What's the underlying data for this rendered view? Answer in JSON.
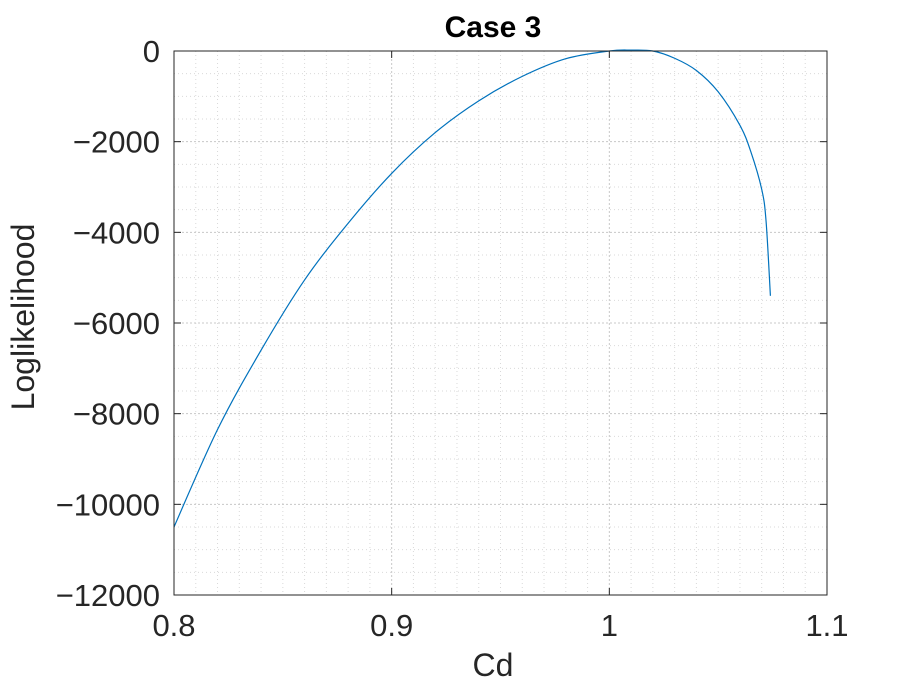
{
  "chart_data": {
    "type": "line",
    "title": "Case 3",
    "xlabel": "Cd",
    "ylabel": "Loglikelihood",
    "xlim": [
      0.8,
      1.1
    ],
    "ylim": [
      -12000,
      0
    ],
    "xticks": [
      0.8,
      0.9,
      1,
      1.1
    ],
    "xtick_labels": [
      "0.8",
      "0.9",
      "1",
      "1.1"
    ],
    "yticks": [
      0,
      -2000,
      -4000,
      -6000,
      -8000,
      -10000,
      -12000
    ],
    "ytick_labels": [
      "0",
      "−2000",
      "−4000",
      "−6000",
      "−8000",
      "−10000",
      "−12000"
    ],
    "grid": true,
    "minor_grid": true,
    "line_color": "#0072BD",
    "series": [
      {
        "x": [
          0.8,
          0.82,
          0.84,
          0.86,
          0.88,
          0.9,
          0.92,
          0.94,
          0.96,
          0.98,
          1.0,
          1.01,
          1.02,
          1.03,
          1.04,
          1.05,
          1.06,
          1.065,
          1.07,
          1.072,
          1.074
        ],
        "y": [
          -10500,
          -8350,
          -6600,
          -5050,
          -3800,
          -2700,
          -1800,
          -1100,
          -560,
          -170,
          0,
          20,
          0,
          -160,
          -430,
          -900,
          -1640,
          -2220,
          -3050,
          -3750,
          -5400
        ]
      }
    ]
  }
}
